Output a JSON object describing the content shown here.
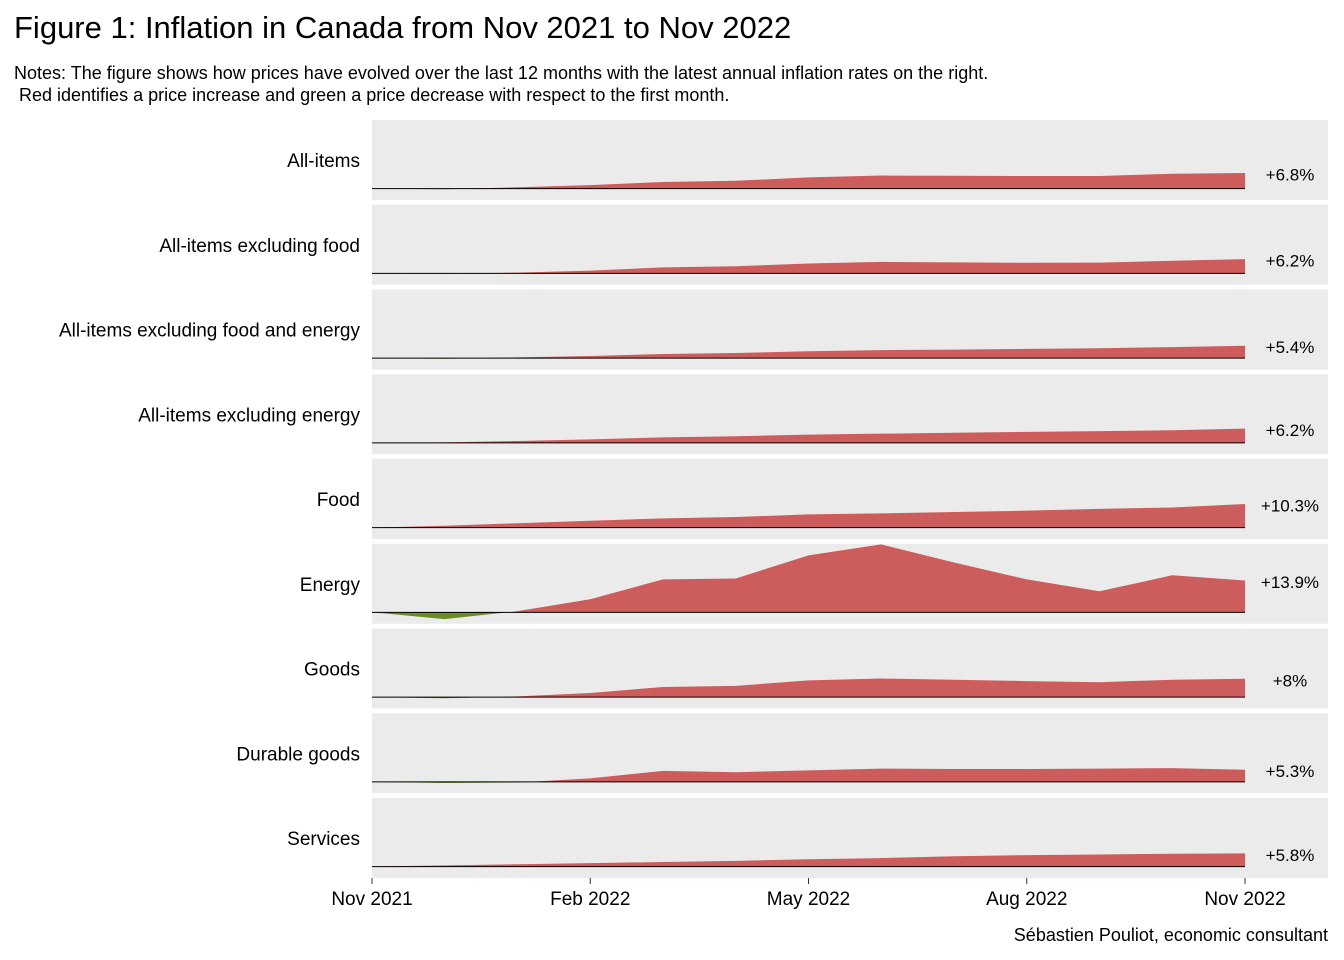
{
  "chart_data": {
    "type": "area",
    "title": "Figure 1: Inflation in Canada from Nov 2021 to Nov 2022",
    "notes": [
      "Notes: The figure shows how prices have evolved over the last 12 months with the latest annual inflation rates on the right.",
      " Red identifies a price increase and green a price decrease with respect to the first month."
    ],
    "caption": "Sébastien Pouliot, economic consultant",
    "x": [
      "2021-11",
      "2021-12",
      "2022-01",
      "2022-02",
      "2022-03",
      "2022-04",
      "2022-05",
      "2022-06",
      "2022-07",
      "2022-08",
      "2022-09",
      "2022-10",
      "2022-11"
    ],
    "xticks": [
      {
        "value": "2021-11",
        "label": "Nov 2021"
      },
      {
        "value": "2022-02",
        "label": "Feb 2022"
      },
      {
        "value": "2022-05",
        "label": "May 2022"
      },
      {
        "value": "2022-08",
        "label": "Aug 2022"
      },
      {
        "value": "2022-11",
        "label": "Nov 2022"
      }
    ],
    "ylim": [
      -5,
      30
    ],
    "pos_color": "#cd5c5c",
    "neg_color": "#6b8e23",
    "series": [
      {
        "name": "All-items",
        "values": [
          0,
          -0.3,
          0.6,
          1.5,
          2.9,
          3.4,
          4.9,
          5.7,
          5.6,
          5.5,
          5.5,
          6.5,
          6.8
        ],
        "value_label": "+6.8%"
      },
      {
        "name": "All-items excluding food",
        "values": [
          0,
          -0.2,
          0.3,
          1.2,
          2.6,
          3.1,
          4.3,
          5.0,
          4.8,
          4.6,
          4.7,
          5.5,
          6.2
        ],
        "value_label": "+6.2%"
      },
      {
        "name": "All-items excluding food and energy",
        "values": [
          0,
          -0.3,
          0.3,
          0.9,
          1.8,
          2.2,
          3.0,
          3.5,
          3.7,
          4.0,
          4.3,
          4.8,
          5.4
        ],
        "value_label": "+5.4%"
      },
      {
        "name": "All-items excluding energy",
        "values": [
          0,
          0.2,
          0.8,
          1.5,
          2.4,
          2.9,
          3.6,
          4.0,
          4.4,
          4.8,
          5.1,
          5.5,
          6.2
        ],
        "value_label": "+6.2%"
      },
      {
        "name": "Food",
        "values": [
          0,
          0.8,
          1.9,
          3.0,
          4.0,
          4.6,
          5.8,
          6.2,
          6.8,
          7.4,
          8.2,
          8.8,
          10.3
        ],
        "value_label": "+10.3%"
      },
      {
        "name": "Energy",
        "values": [
          0,
          -3,
          0.5,
          5.7,
          14.4,
          14.8,
          24.9,
          29.7,
          21.8,
          14.4,
          9.2,
          16.2,
          13.9
        ],
        "value_label": "+13.9%"
      },
      {
        "name": "Goods",
        "values": [
          0,
          -0.5,
          0.3,
          1.8,
          4.4,
          4.9,
          7.3,
          8.1,
          7.6,
          7.0,
          6.5,
          7.6,
          8.0
        ],
        "value_label": "+8%"
      },
      {
        "name": "Durable goods",
        "values": [
          0,
          -0.5,
          -0.3,
          1.5,
          4.8,
          4.2,
          5.0,
          5.8,
          5.6,
          5.6,
          5.8,
          6.0,
          5.3
        ],
        "value_label": "+5.3%"
      },
      {
        "name": "Services",
        "values": [
          0,
          0.5,
          1.0,
          1.5,
          2.0,
          2.5,
          3.2,
          3.7,
          4.5,
          5.0,
          5.3,
          5.6,
          5.8
        ],
        "value_label": "+5.8%"
      }
    ]
  }
}
